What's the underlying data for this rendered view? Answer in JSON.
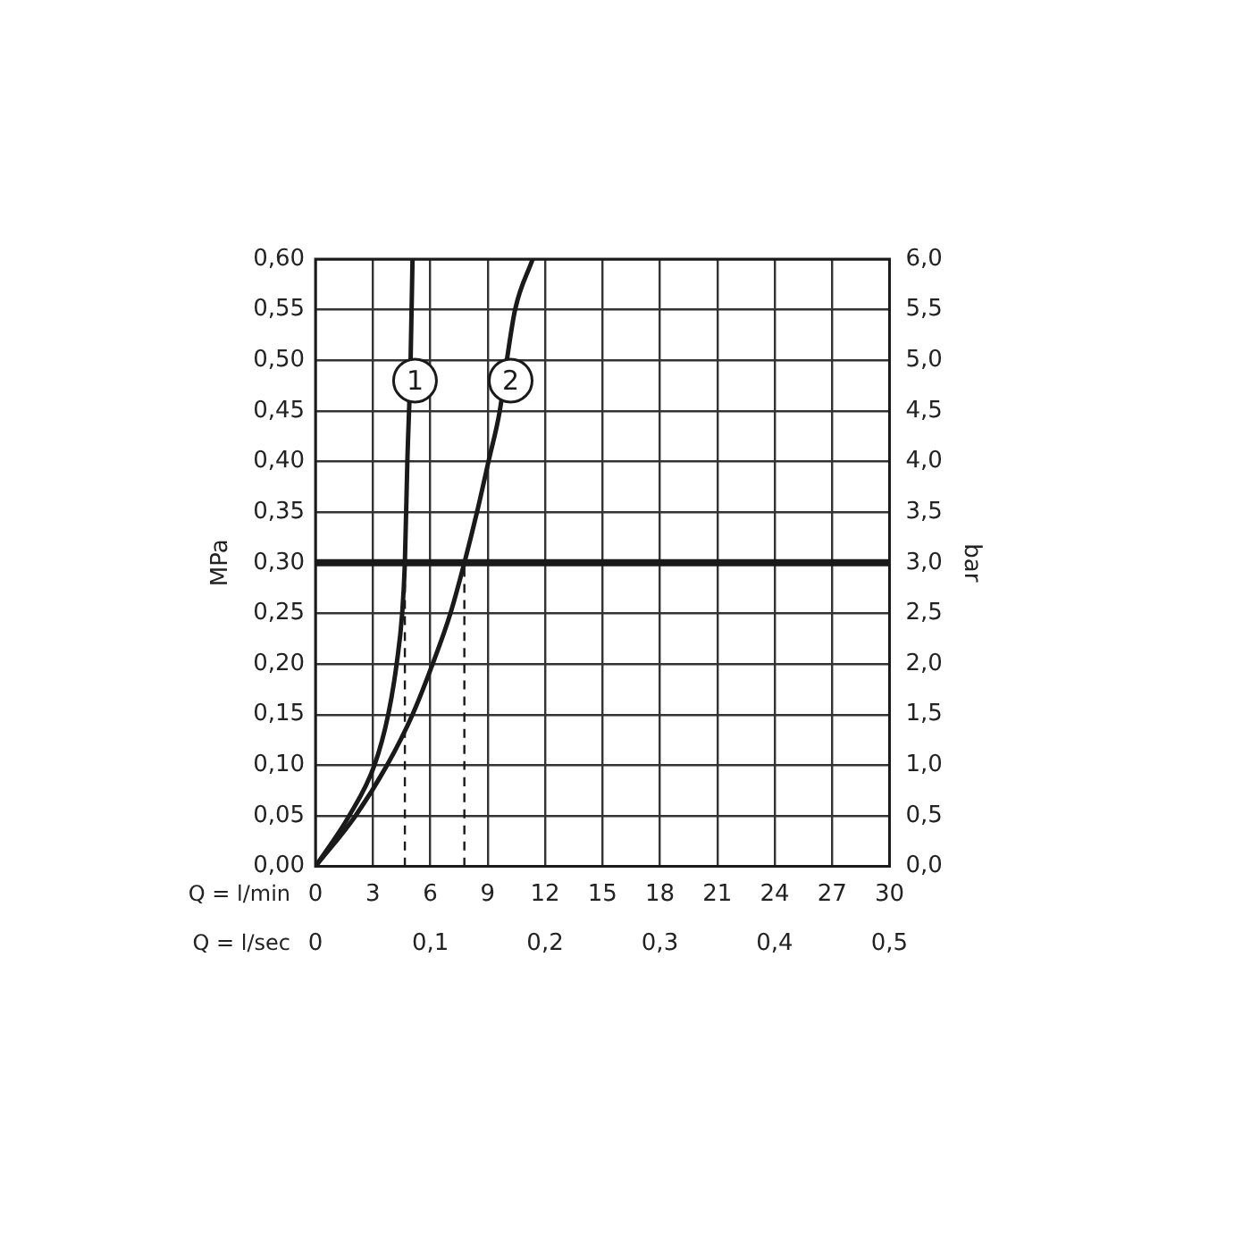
{
  "chart_data": {
    "type": "line",
    "xlabel": "Q = l/min",
    "x2label": "Q = l/sec",
    "ylabel": "MPa",
    "y2label": "bar",
    "xlim": [
      0,
      30
    ],
    "xticks": [
      0,
      3,
      6,
      9,
      12,
      15,
      18,
      21,
      24,
      27,
      30
    ],
    "x2lim": [
      0,
      0.5
    ],
    "x2ticks": [
      0,
      {
        "value": 0.1,
        "label": "0,1"
      },
      {
        "value": 0.2,
        "label": "0,2"
      },
      {
        "value": 0.3,
        "label": "0,3"
      },
      {
        "value": 0.4,
        "label": "0,4"
      },
      {
        "value": 0.5,
        "label": "0,5"
      }
    ],
    "ylim": [
      0,
      0.6
    ],
    "yticks": [
      {
        "value": 0,
        "label": "0,00"
      },
      {
        "value": 0.05,
        "label": "0,05"
      },
      {
        "value": 0.1,
        "label": "0,10"
      },
      {
        "value": 0.15,
        "label": "0,15"
      },
      {
        "value": 0.2,
        "label": "0,20"
      },
      {
        "value": 0.25,
        "label": "0,25"
      },
      {
        "value": 0.3,
        "label": "0,30"
      },
      {
        "value": 0.35,
        "label": "0,35"
      },
      {
        "value": 0.4,
        "label": "0,40"
      },
      {
        "value": 0.45,
        "label": "0,45"
      },
      {
        "value": 0.5,
        "label": "0,50"
      },
      {
        "value": 0.55,
        "label": "0,55"
      },
      {
        "value": 0.6,
        "label": "0,60"
      }
    ],
    "y2lim": [
      0,
      6
    ],
    "y2ticks": [
      {
        "value": 0,
        "label": "0,0"
      },
      {
        "value": 0.5,
        "label": "0,5"
      },
      {
        "value": 1,
        "label": "1,0"
      },
      {
        "value": 1.5,
        "label": "1,5"
      },
      {
        "value": 2,
        "label": "2,0"
      },
      {
        "value": 2.5,
        "label": "2,5"
      },
      {
        "value": 3,
        "label": "3,0"
      },
      {
        "value": 3.5,
        "label": "3,5"
      },
      {
        "value": 4,
        "label": "4,0"
      },
      {
        "value": 4.5,
        "label": "4,5"
      },
      {
        "value": 5,
        "label": "5,0"
      },
      {
        "value": 5.5,
        "label": "5,5"
      },
      {
        "value": 6,
        "label": "6,0"
      }
    ],
    "grid": true,
    "legend": false,
    "marker": "none",
    "series": [
      {
        "color": "#1a1a1a",
        "line_style": "solid",
        "x": [
          0,
          1.76,
          3.08,
          3.8,
          4.24,
          4.53,
          4.67,
          4.8,
          4.97,
          5.07
        ],
        "values": [
          0,
          0.05,
          0.1,
          0.15,
          0.2,
          0.25,
          0.3,
          0.4,
          0.5,
          0.6
        ]
      },
      {
        "color": "#1a1a1a",
        "line_style": "solid",
        "x": [
          0,
          2.09,
          3.74,
          5.07,
          6.12,
          7.05,
          7.78,
          8.44,
          9.04,
          9.63,
          10.0,
          10.43,
          11.35
        ],
        "values": [
          0,
          0.05,
          0.1,
          0.15,
          0.2,
          0.25,
          0.3,
          0.35,
          0.4,
          0.45,
          0.5,
          0.55,
          0.6
        ]
      },
      {
        "color": "#1a1a1a",
        "line_style": "dashed",
        "x": [
          4.67,
          4.67
        ],
        "values": [
          0,
          0.3
        ]
      },
      {
        "color": "#1a1a1a",
        "line_style": "dashed",
        "x": [
          7.78,
          7.78
        ],
        "values": [
          0,
          0.3
        ]
      }
    ],
    "ref_lines": [
      {
        "axis": "y",
        "value": 0.3,
        "color": "#1a1a1a"
      }
    ],
    "annotations": [
      {
        "text": "1",
        "x": 5.2,
        "y": 0.48
      },
      {
        "text": "2",
        "x": 10.2,
        "y": 0.48
      }
    ]
  }
}
